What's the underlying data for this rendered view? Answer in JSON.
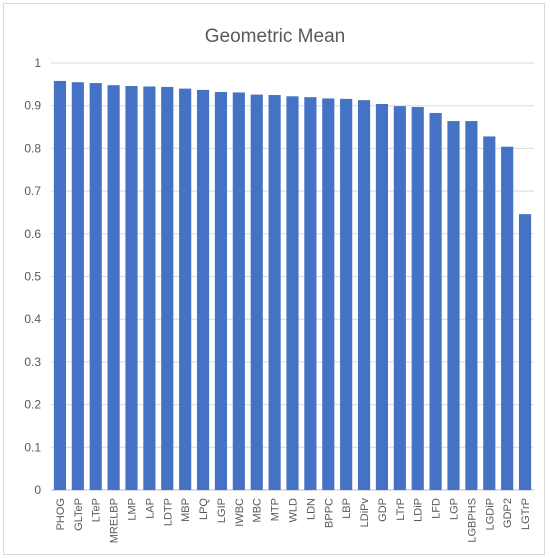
{
  "chart_data": {
    "type": "bar",
    "title": "Geometric Mean",
    "xlabel": "",
    "ylabel": "",
    "ylim": [
      0,
      1
    ],
    "yticks": [
      "0",
      "0.1",
      "0.2",
      "0.3",
      "0.4",
      "0.5",
      "0.6",
      "0.7",
      "0.8",
      "0.9",
      "1"
    ],
    "grid": true,
    "legend": "none",
    "bar_color": "#4472c4",
    "categories": [
      "PHOG",
      "GLTeP",
      "LTeP",
      "MRELBP",
      "LMP",
      "LAP",
      "LDTP",
      "MBP",
      "LPQ",
      "LGIP",
      "IWBC",
      "MBC",
      "MTP",
      "WLD",
      "LDN",
      "BPPC",
      "LBP",
      "LDiPv",
      "GDP",
      "LTrP",
      "LDiP",
      "LFD",
      "LGP",
      "LGBPHS",
      "LGDiP",
      "GDP2",
      "LGTrP"
    ],
    "values": [
      0.958,
      0.955,
      0.953,
      0.948,
      0.946,
      0.945,
      0.944,
      0.94,
      0.937,
      0.932,
      0.931,
      0.926,
      0.925,
      0.922,
      0.92,
      0.917,
      0.916,
      0.913,
      0.904,
      0.899,
      0.897,
      0.883,
      0.864,
      0.864,
      0.828,
      0.804,
      0.646
    ]
  }
}
